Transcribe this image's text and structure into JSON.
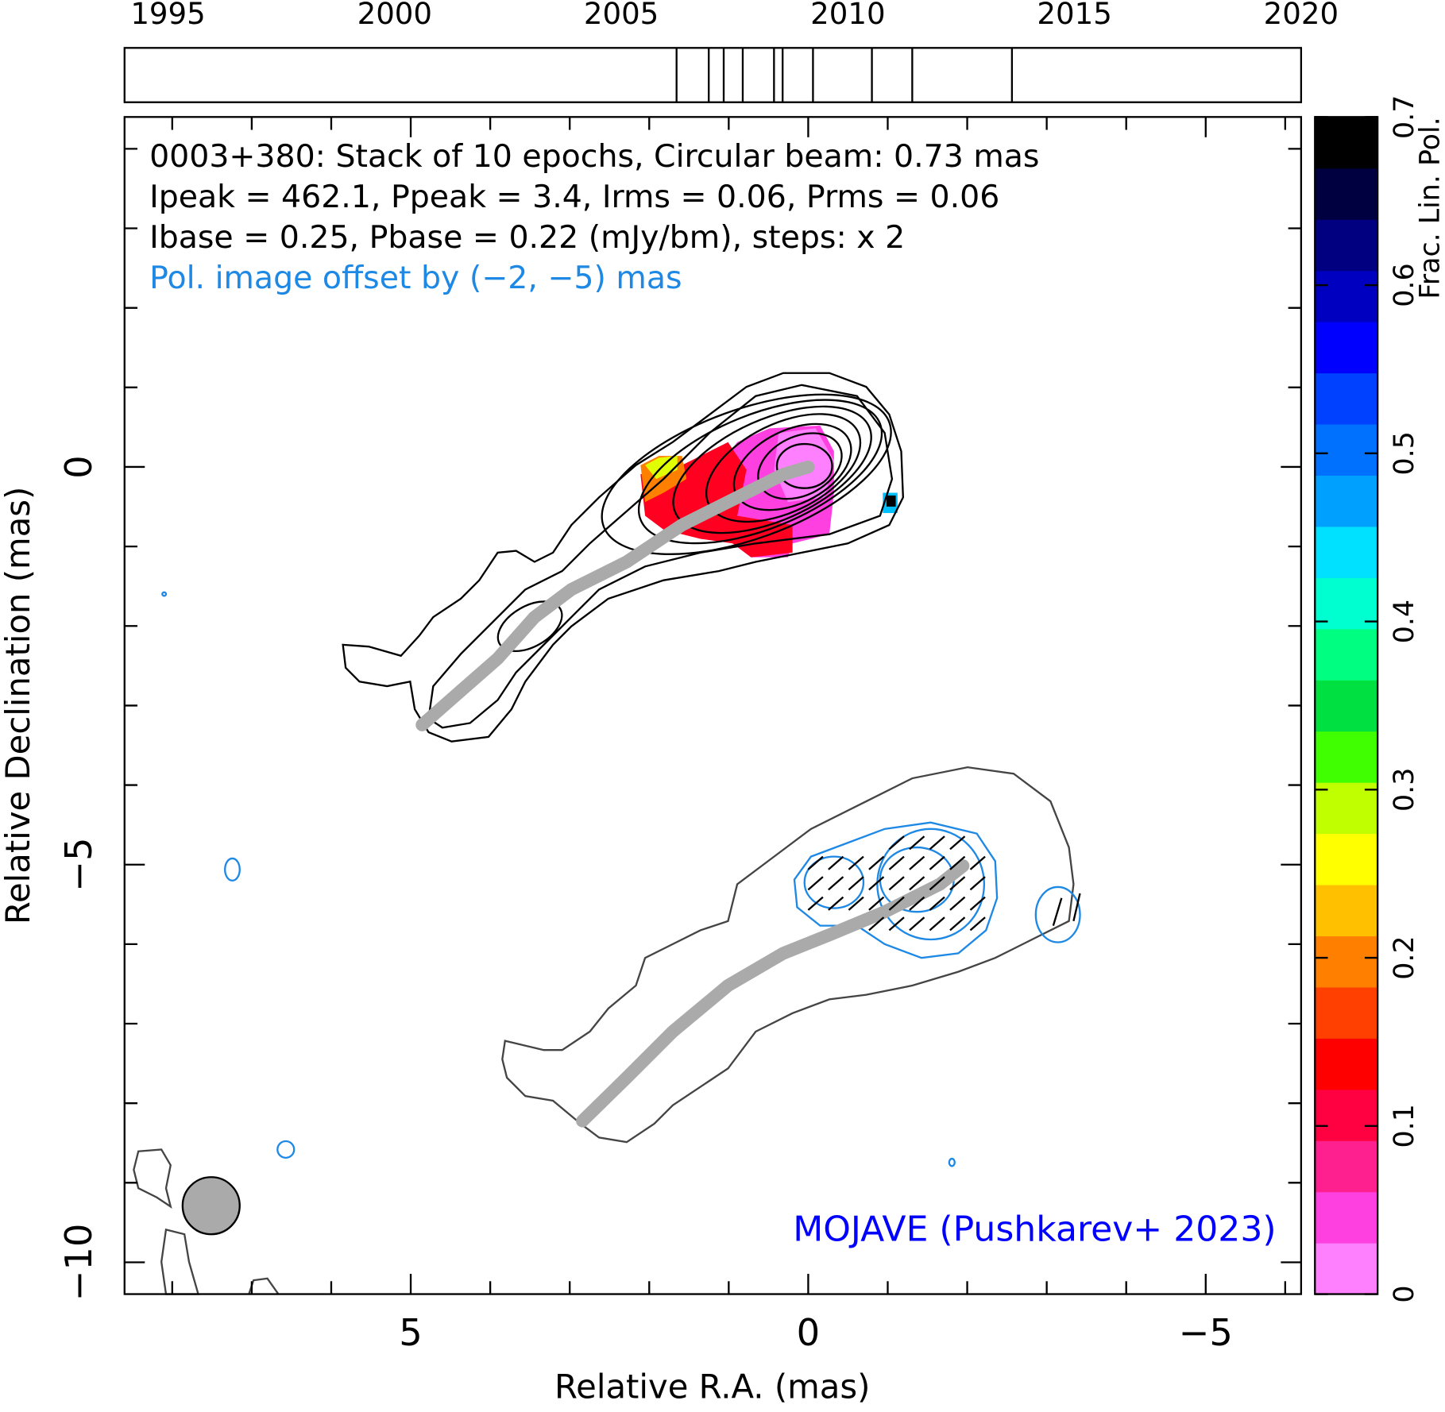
{
  "chart_data": [
    {
      "type": "timeline",
      "xlim": [
        1994.04,
        2020
      ],
      "xticks": [
        1995,
        2000,
        2005,
        2010,
        2015,
        2020
      ],
      "epochs": [
        2006.22,
        2006.93,
        2007.26,
        2007.68,
        2008.37,
        2008.56,
        2009.23,
        2010.53,
        2011.42,
        2013.62
      ]
    },
    {
      "type": "map",
      "annotations": [
        {
          "text": "0003+380: Stack of 10 epochs, Circular beam: 0.73 mas",
          "color": "#000000"
        },
        {
          "text": "Ipeak = 462.1, Ppeak = 3.4, Irms = 0.06, Prms = 0.06",
          "color": "#000000"
        },
        {
          "text": "Ibase = 0.25, Pbase = 0.22 (mJy/bm), steps: x 2",
          "color": "#000000"
        },
        {
          "text": "Pol. image offset by (−2, −5) mas",
          "color": "#1e88e5"
        }
      ],
      "credit": {
        "text": "MOJAVE (Pushkarev+ 2023)",
        "color": "#0000ff"
      },
      "xlabel": "Relative R.A. (mas)",
      "ylabel": "Relative Declination (mas)",
      "xlim": [
        8.6,
        -6.2
      ],
      "ylim": [
        -10.4,
        4.4
      ],
      "xticks": [
        5,
        0,
        {
          "value": -5,
          "label": "−5"
        }
      ],
      "yticks": [
        0,
        {
          "value": -5,
          "label": "−5"
        },
        {
          "value": -10,
          "label": "−10"
        }
      ],
      "xminorticks": [
        8,
        7,
        6,
        4,
        3,
        2,
        1,
        -1,
        -2,
        -3,
        -4,
        -6
      ],
      "yminorticks": [
        4,
        3,
        2,
        1,
        -1,
        -2,
        -3,
        -4,
        -6,
        -7,
        -8,
        -9
      ]
    },
    {
      "type": "colorbar",
      "label": "Frac. Lin. Pol.",
      "ylim": [
        0,
        0.7
      ],
      "yticks": [
        0,
        0.1,
        0.2,
        0.3,
        0.4,
        0.5,
        0.6,
        0.7
      ],
      "colors": [
        "#ff80ff",
        "#ff40e0",
        "#ff2090",
        "#ff0040",
        "#ff0000",
        "#ff4000",
        "#ff8000",
        "#ffc000",
        "#ffff00",
        "#c0ff00",
        "#40ff00",
        "#00e040",
        "#00ff80",
        "#00ffd0",
        "#00e0ff",
        "#00a0ff",
        "#0070ff",
        "#0040ff",
        "#0000ff",
        "#0000c0",
        "#000080",
        "#000040",
        "#000000"
      ]
    }
  ]
}
